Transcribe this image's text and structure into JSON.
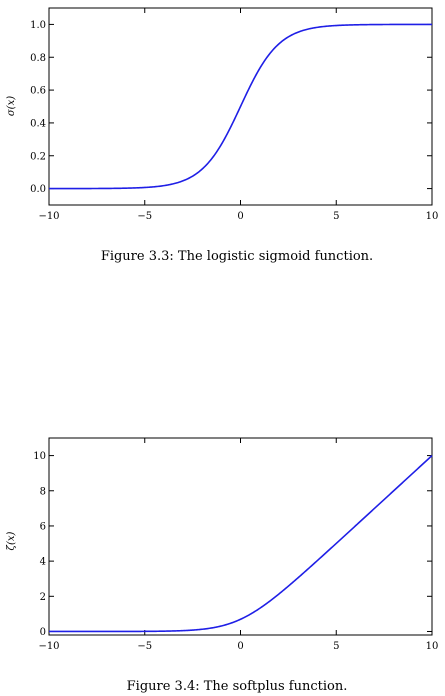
{
  "colors": {
    "curve": "#1f1fe6",
    "frame": "#000000",
    "background": "#ffffff"
  },
  "chart_data": [
    {
      "type": "line",
      "function": "sigmoid",
      "caption": "Figure 3.3: The logistic sigmoid function.",
      "xlabel": "",
      "ylabel": "σ(x)",
      "xlim": [
        -10,
        10
      ],
      "ylim": [
        -0.1,
        1.1
      ],
      "xticks": [
        -10,
        -5,
        0,
        5,
        10
      ],
      "xtick_labels": [
        "−10",
        "−5",
        "0",
        "5",
        "10"
      ],
      "yticks": [
        0.0,
        0.2,
        0.4,
        0.6,
        0.8,
        1.0
      ],
      "ytick_labels": [
        "0.0",
        "0.2",
        "0.4",
        "0.6",
        "0.8",
        "1.0"
      ],
      "grid": false,
      "series": [
        {
          "x": [
            -10,
            -8,
            -6,
            -5,
            -4,
            -3,
            -2,
            -1,
            0,
            1,
            2,
            3,
            4,
            5,
            6,
            8,
            10
          ],
          "y": [
            4.54e-05,
            0.000335,
            0.00247,
            0.00669,
            0.018,
            0.0474,
            0.119,
            0.269,
            0.5,
            0.731,
            0.881,
            0.953,
            0.982,
            0.993,
            0.998,
            0.9997,
            0.99995
          ]
        }
      ]
    },
    {
      "type": "line",
      "function": "softplus",
      "caption": "Figure 3.4: The softplus function.",
      "xlabel": "",
      "ylabel": "ζ(x)",
      "xlim": [
        -10,
        10
      ],
      "ylim": [
        -0.2,
        11
      ],
      "xticks": [
        -10,
        -5,
        0,
        5,
        10
      ],
      "xtick_labels": [
        "−10",
        "−5",
        "0",
        "5",
        "10"
      ],
      "yticks": [
        0,
        2,
        4,
        6,
        8,
        10
      ],
      "ytick_labels": [
        "0",
        "2",
        "4",
        "6",
        "8",
        "10"
      ],
      "grid": false,
      "series": [
        {
          "x": [
            -10,
            -8,
            -6,
            -5,
            -4,
            -3,
            -2,
            -1,
            0,
            1,
            2,
            3,
            4,
            5,
            6,
            8,
            10
          ],
          "y": [
            4.54e-05,
            0.000335,
            0.00248,
            0.00672,
            0.0181,
            0.0486,
            0.127,
            0.313,
            0.693,
            1.313,
            2.127,
            3.049,
            4.018,
            5.007,
            6.002,
            8.0003,
            10.00005
          ]
        }
      ]
    }
  ]
}
